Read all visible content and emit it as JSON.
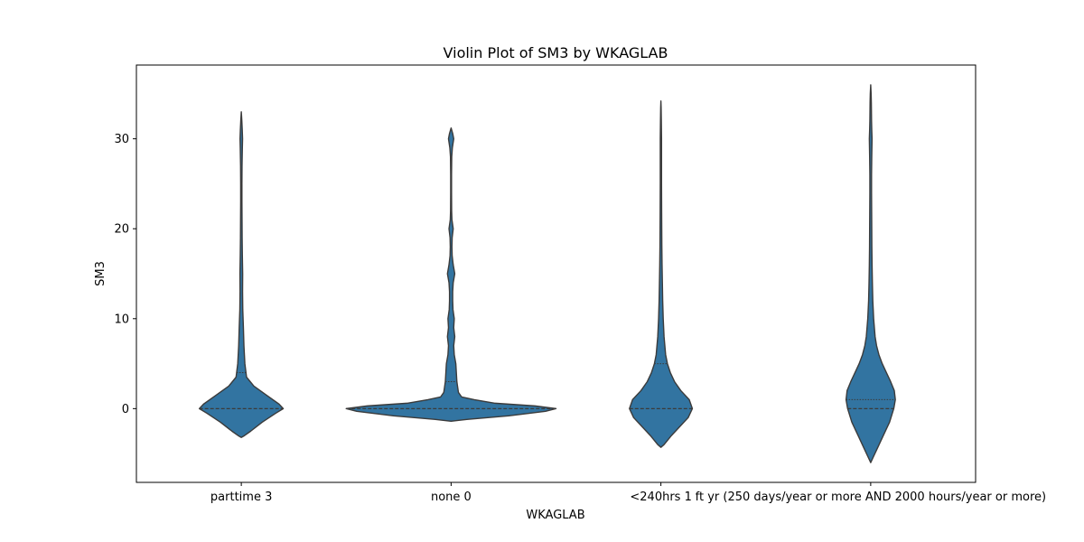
{
  "chart_data": {
    "type": "violin",
    "title": "Violin Plot of SM3 by WKAGLAB",
    "xlabel": "WKAGLAB",
    "ylabel": "SM3",
    "ylim": [
      -8.2,
      38.2
    ],
    "yticks": [
      0,
      10,
      20,
      30
    ],
    "ytick_labels": [
      "0",
      "10",
      "20",
      "30"
    ],
    "grid": false,
    "legend": "none",
    "fill_color": "#3274a1",
    "edge_color": "#3b3b3b",
    "categories": [
      "parttime 3",
      "none 0",
      "<240hrs 1",
      "ft yr (250 days/year or more AND 2000 hours/year or more)"
    ],
    "violins": [
      {
        "category": "parttime 3",
        "range": [
          -3.2,
          33.0
        ],
        "median": 0,
        "q1": 0,
        "q3": 4,
        "max_half_width": 0.4,
        "density": [
          [
            -3.2,
            0.0
          ],
          [
            -3.0,
            0.03
          ],
          [
            -2.5,
            0.09
          ],
          [
            -1.5,
            0.2
          ],
          [
            -0.5,
            0.33
          ],
          [
            0.0,
            0.4
          ],
          [
            0.5,
            0.36
          ],
          [
            1.5,
            0.24
          ],
          [
            2.5,
            0.12
          ],
          [
            3.5,
            0.05
          ],
          [
            5.0,
            0.034
          ],
          [
            7.0,
            0.025
          ],
          [
            9.0,
            0.02
          ],
          [
            11.0,
            0.014
          ],
          [
            13.0,
            0.012
          ],
          [
            15.0,
            0.013
          ],
          [
            17.0,
            0.01
          ],
          [
            19.0,
            0.008
          ],
          [
            21.0,
            0.007
          ],
          [
            23.0,
            0.006
          ],
          [
            25.0,
            0.006
          ],
          [
            27.0,
            0.007
          ],
          [
            29.0,
            0.01
          ],
          [
            30.0,
            0.012
          ],
          [
            31.0,
            0.009
          ],
          [
            32.0,
            0.005
          ],
          [
            33.0,
            0.0
          ]
        ]
      },
      {
        "category": "none 0",
        "range": [
          -1.4,
          31.2
        ],
        "median": 0,
        "q1": 0,
        "q3": 3,
        "max_half_width": 1.0,
        "density": [
          [
            -1.4,
            0.0
          ],
          [
            -1.2,
            0.15
          ],
          [
            -0.8,
            0.55
          ],
          [
            -0.3,
            0.9
          ],
          [
            0.0,
            1.0
          ],
          [
            0.3,
            0.8
          ],
          [
            0.6,
            0.42
          ],
          [
            1.0,
            0.22
          ],
          [
            1.3,
            0.1
          ],
          [
            1.8,
            0.07
          ],
          [
            3.0,
            0.055
          ],
          [
            4.0,
            0.05
          ],
          [
            5.0,
            0.045
          ],
          [
            6.0,
            0.03
          ],
          [
            7.0,
            0.025
          ],
          [
            8.0,
            0.035
          ],
          [
            9.0,
            0.025
          ],
          [
            10.0,
            0.03
          ],
          [
            11.0,
            0.018
          ],
          [
            12.0,
            0.015
          ],
          [
            13.0,
            0.015
          ],
          [
            14.0,
            0.02
          ],
          [
            15.0,
            0.035
          ],
          [
            16.0,
            0.02
          ],
          [
            17.0,
            0.01
          ],
          [
            18.0,
            0.008
          ],
          [
            19.0,
            0.01
          ],
          [
            20.0,
            0.02
          ],
          [
            21.0,
            0.008
          ],
          [
            22.0,
            0.005
          ],
          [
            24.0,
            0.004
          ],
          [
            26.0,
            0.004
          ],
          [
            28.0,
            0.006
          ],
          [
            29.0,
            0.012
          ],
          [
            30.0,
            0.025
          ],
          [
            30.6,
            0.015
          ],
          [
            31.2,
            0.0
          ]
        ]
      },
      {
        "category": "<240hrs 1",
        "range": [
          -4.3,
          34.2
        ],
        "median": 0,
        "q1": 0,
        "q3": 5,
        "max_half_width": 0.3,
        "density": [
          [
            -4.3,
            0.0
          ],
          [
            -4.0,
            0.03
          ],
          [
            -3.0,
            0.1
          ],
          [
            -2.0,
            0.18
          ],
          [
            -1.0,
            0.26
          ],
          [
            0.0,
            0.3
          ],
          [
            1.0,
            0.27
          ],
          [
            2.0,
            0.19
          ],
          [
            3.0,
            0.13
          ],
          [
            4.0,
            0.09
          ],
          [
            5.0,
            0.062
          ],
          [
            6.0,
            0.045
          ],
          [
            8.0,
            0.03
          ],
          [
            10.0,
            0.022
          ],
          [
            12.0,
            0.017
          ],
          [
            14.0,
            0.014
          ],
          [
            16.0,
            0.011
          ],
          [
            18.0,
            0.009
          ],
          [
            20.0,
            0.008
          ],
          [
            22.0,
            0.007
          ],
          [
            25.0,
            0.006
          ],
          [
            28.0,
            0.006
          ],
          [
            30.0,
            0.006
          ],
          [
            32.0,
            0.004
          ],
          [
            33.5,
            0.002
          ],
          [
            34.2,
            0.0
          ]
        ]
      },
      {
        "category": "ft yr (250 days/year or more AND 2000 hours/year or more)",
        "range": [
          -6.0,
          36.0
        ],
        "median": 0,
        "q1": 0,
        "q3": 1,
        "max_half_width": 0.25,
        "density": [
          [
            -6.0,
            0.0
          ],
          [
            -5.5,
            0.02
          ],
          [
            -4.5,
            0.06
          ],
          [
            -3.0,
            0.12
          ],
          [
            -1.5,
            0.18
          ],
          [
            0.0,
            0.22
          ],
          [
            1.0,
            0.235
          ],
          [
            2.0,
            0.225
          ],
          [
            3.0,
            0.19
          ],
          [
            4.0,
            0.15
          ],
          [
            5.0,
            0.11
          ],
          [
            6.0,
            0.078
          ],
          [
            7.0,
            0.056
          ],
          [
            8.0,
            0.042
          ],
          [
            10.0,
            0.028
          ],
          [
            12.0,
            0.02
          ],
          [
            14.0,
            0.016
          ],
          [
            16.0,
            0.013
          ],
          [
            18.0,
            0.011
          ],
          [
            20.0,
            0.01
          ],
          [
            22.0,
            0.009
          ],
          [
            24.0,
            0.008
          ],
          [
            26.0,
            0.008
          ],
          [
            28.0,
            0.01
          ],
          [
            30.0,
            0.013
          ],
          [
            31.0,
            0.01
          ],
          [
            32.0,
            0.008
          ],
          [
            34.0,
            0.006
          ],
          [
            35.0,
            0.004
          ],
          [
            36.0,
            0.0
          ]
        ]
      }
    ]
  }
}
